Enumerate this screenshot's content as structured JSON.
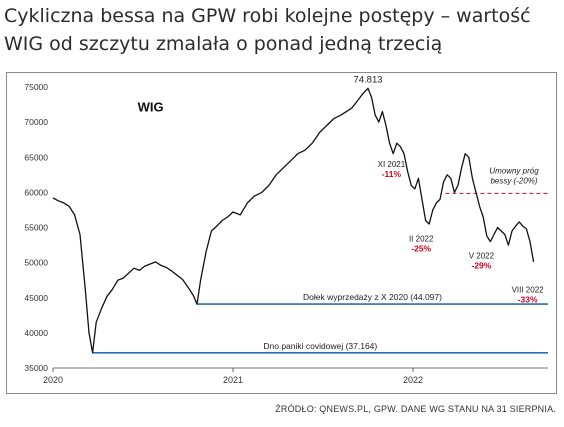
{
  "headline": "Cykliczna bessa na GPW robi kolejne postępy – wartość WIG od szczytu zmalała o ponad jedną trzecią",
  "source": "ŹRÓDŁO: QNEWS.PL, GPW. DANE WG STANU NA 31 SIERPNIA.",
  "colors": {
    "line": "#111111",
    "support": "#2a6fb5",
    "threshold": "#c8102e",
    "pct": "#d0021b"
  },
  "chart_data": {
    "type": "line",
    "title": "WIG",
    "xlabel": "",
    "ylabel": "",
    "xlim": [
      2020.0,
      2022.75
    ],
    "ylim": [
      35000,
      75000
    ],
    "yticks": [
      35000,
      40000,
      45000,
      50000,
      55000,
      60000,
      65000,
      70000,
      75000
    ],
    "ytick_labels": [
      "35000",
      "40000",
      "45000",
      "50000",
      "55000",
      "60000",
      "65000",
      "70000",
      "75000"
    ],
    "xticks": [
      2020,
      2021,
      2022
    ],
    "xtick_labels": [
      "2020",
      "2021",
      "2022"
    ],
    "grid": false,
    "series": [
      {
        "name": "WIG",
        "x": [
          2020.0,
          2020.03,
          2020.06,
          2020.09,
          2020.12,
          2020.15,
          2020.18,
          2020.2,
          2020.22,
          2020.24,
          2020.27,
          2020.3,
          2020.33,
          2020.36,
          2020.39,
          2020.42,
          2020.45,
          2020.48,
          2020.51,
          2020.54,
          2020.57,
          2020.6,
          2020.63,
          2020.66,
          2020.69,
          2020.72,
          2020.75,
          2020.78,
          2020.8,
          2020.82,
          2020.85,
          2020.88,
          2020.91,
          2020.94,
          2020.97,
          2021.0,
          2021.04,
          2021.08,
          2021.12,
          2021.16,
          2021.2,
          2021.24,
          2021.28,
          2021.32,
          2021.36,
          2021.4,
          2021.44,
          2021.48,
          2021.52,
          2021.56,
          2021.6,
          2021.63,
          2021.66,
          2021.69,
          2021.72,
          2021.75,
          2021.77,
          2021.79,
          2021.81,
          2021.83,
          2021.85,
          2021.87,
          2021.89,
          2021.91,
          2021.93,
          2021.95,
          2021.97,
          2021.99,
          2022.01,
          2022.03,
          2022.05,
          2022.07,
          2022.09,
          2022.11,
          2022.13,
          2022.15,
          2022.17,
          2022.19,
          2022.21,
          2022.23,
          2022.25,
          2022.27,
          2022.29,
          2022.31,
          2022.33,
          2022.35,
          2022.37,
          2022.39,
          2022.41,
          2022.43,
          2022.45,
          2022.47,
          2022.49,
          2022.51,
          2022.53,
          2022.55,
          2022.57,
          2022.59,
          2022.61,
          2022.63,
          2022.65,
          2022.67
        ],
        "y": [
          59200,
          58800,
          58500,
          58000,
          56800,
          54000,
          46000,
          40000,
          37164,
          41500,
          43500,
          45200,
          46200,
          47500,
          47800,
          48500,
          49200,
          48900,
          49500,
          49800,
          50100,
          49600,
          49300,
          48800,
          48200,
          47600,
          46500,
          45300,
          44097,
          47500,
          51500,
          54500,
          55200,
          56000,
          56500,
          57200,
          56800,
          58500,
          59500,
          60000,
          61000,
          62500,
          63500,
          64500,
          65500,
          66000,
          67000,
          68500,
          69500,
          70500,
          71000,
          71500,
          72000,
          73000,
          74000,
          74813,
          73500,
          71000,
          70000,
          71500,
          69500,
          67000,
          65500,
          67000,
          66500,
          65500,
          63000,
          61000,
          60500,
          62000,
          59000,
          56000,
          55500,
          57500,
          58500,
          59000,
          61500,
          62500,
          62000,
          60000,
          61000,
          63500,
          65500,
          65000,
          62000,
          60000,
          58000,
          56500,
          53800,
          53000,
          54000,
          55000,
          54500,
          54000,
          52500,
          54500,
          55200,
          55800,
          55200,
          54800,
          53000,
          50100
        ]
      }
    ],
    "annotations": [
      {
        "name": "peak",
        "x": 2021.75,
        "y": 74813,
        "label": "74.813",
        "pct": ""
      },
      {
        "name": "xi-2021",
        "x": 2021.88,
        "y": 65600,
        "label": "XI 2021",
        "pct": "-11%"
      },
      {
        "name": "ii-2022",
        "x": 2022.09,
        "y": 55000,
        "label": "II 2022",
        "pct": "-25%"
      },
      {
        "name": "v-2022",
        "x": 2022.38,
        "y": 52000,
        "label": "V 2022",
        "pct": "-29%"
      },
      {
        "name": "viii-2022",
        "x": 2022.67,
        "y": 48000,
        "label": "VIII 2022",
        "pct": "-33%"
      }
    ],
    "reference_lines": [
      {
        "name": "covid-low",
        "y": 37164,
        "x_start": 2020.22,
        "label": "Dno paniki covidowej (37.164)",
        "style": "solid"
      },
      {
        "name": "sale-hole",
        "y": 44097,
        "x_start": 2020.8,
        "label": "Dołek wyprzedaży z X 2020 (44.097)",
        "style": "solid"
      },
      {
        "name": "bear-threshold",
        "y": 59850,
        "x_start": 2022.18,
        "label_lines": [
          "Umowny próg",
          "bessy (-20%)"
        ],
        "style": "dashed"
      }
    ]
  }
}
